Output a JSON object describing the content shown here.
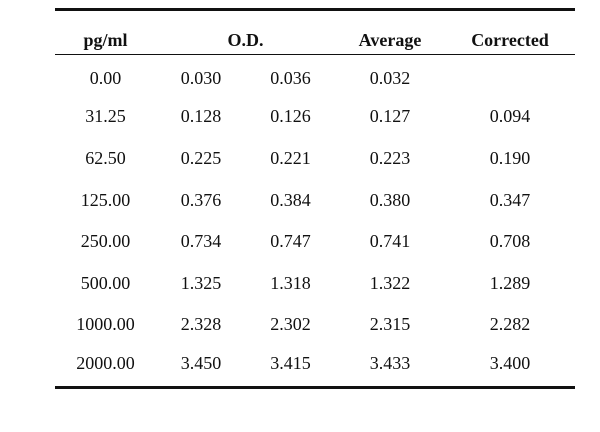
{
  "table": {
    "headers": {
      "conc": "pg/ml",
      "od": "O.D.",
      "average": "Average",
      "corrected": "Corrected"
    },
    "rows": [
      {
        "conc": "0.00",
        "od1": "0.030",
        "od2": "0.036",
        "average": "0.032",
        "corrected": ""
      },
      {
        "conc": "31.25",
        "od1": "0.128",
        "od2": "0.126",
        "average": "0.127",
        "corrected": "0.094"
      },
      {
        "conc": "62.50",
        "od1": "0.225",
        "od2": "0.221",
        "average": "0.223",
        "corrected": "0.190"
      },
      {
        "conc": "125.00",
        "od1": "0.376",
        "od2": "0.384",
        "average": "0.380",
        "corrected": "0.347"
      },
      {
        "conc": "250.00",
        "od1": "0.734",
        "od2": "0.747",
        "average": "0.741",
        "corrected": "0.708"
      },
      {
        "conc": "500.00",
        "od1": "1.325",
        "od2": "1.318",
        "average": "1.322",
        "corrected": "1.289"
      },
      {
        "conc": "1000.00",
        "od1": "2.328",
        "od2": "2.302",
        "average": "2.315",
        "corrected": "2.282"
      },
      {
        "conc": "2000.00",
        "od1": "3.450",
        "od2": "3.415",
        "average": "3.433",
        "corrected": "3.400"
      }
    ]
  }
}
